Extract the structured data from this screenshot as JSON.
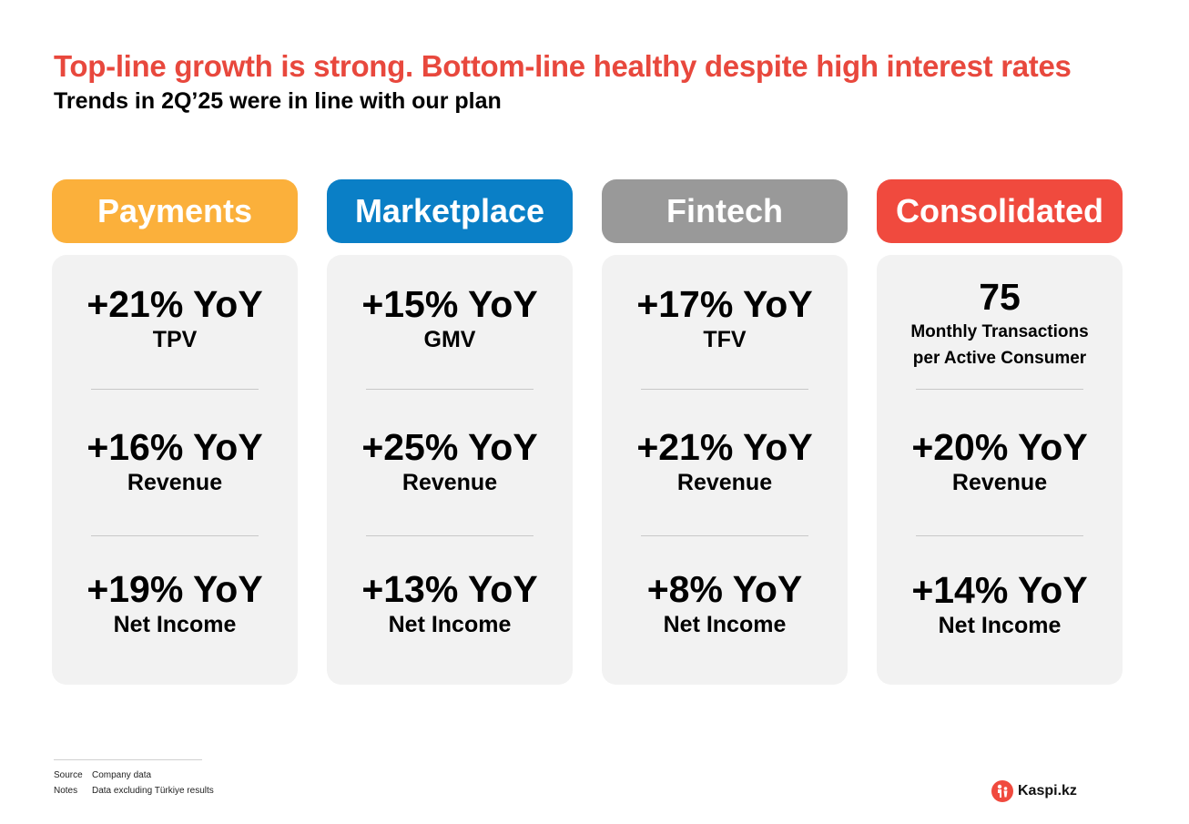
{
  "title": "Top-line growth is strong. Bottom-line healthy despite high interest rates",
  "subtitle": "Trends in 2Q’25 were in line with our plan",
  "colors": {
    "payments": "#fbb03b",
    "marketplace": "#0a7fc6",
    "fintech": "#999999",
    "consolidated": "#f04a3e",
    "title": "#e8483d"
  },
  "columns": [
    {
      "header": "Payments",
      "metrics": [
        {
          "value": "+21% YoY",
          "label": "TPV"
        },
        {
          "value": "+16% YoY",
          "label": "Revenue"
        },
        {
          "value": "+19% YoY",
          "label": "Net Income"
        }
      ]
    },
    {
      "header": "Marketplace",
      "metrics": [
        {
          "value": "+15% YoY",
          "label": "GMV"
        },
        {
          "value": "+25% YoY",
          "label": "Revenue"
        },
        {
          "value": "+13% YoY",
          "label": "Net Income"
        }
      ]
    },
    {
      "header": "Fintech",
      "metrics": [
        {
          "value": "+17% YoY",
          "label": "TFV"
        },
        {
          "value": "+21% YoY",
          "label": "Revenue"
        },
        {
          "value": "+8% YoY",
          "label": "Net Income"
        }
      ]
    },
    {
      "header": "Consolidated",
      "metrics": [
        {
          "value": "75",
          "label_line1": "Monthly Transactions",
          "label_line2": "per Active Consumer"
        },
        {
          "value": "+20% YoY",
          "label": "Revenue"
        },
        {
          "value": "+14% YoY",
          "label": "Net Income"
        }
      ]
    }
  ],
  "footer": {
    "source_key": "Source",
    "source_value": "Company data",
    "notes_key": "Notes",
    "notes_value": "Data excluding Türkiye results"
  },
  "logo": {
    "icon": "kaspi-logo-icon",
    "text": "Kaspi.kz"
  }
}
